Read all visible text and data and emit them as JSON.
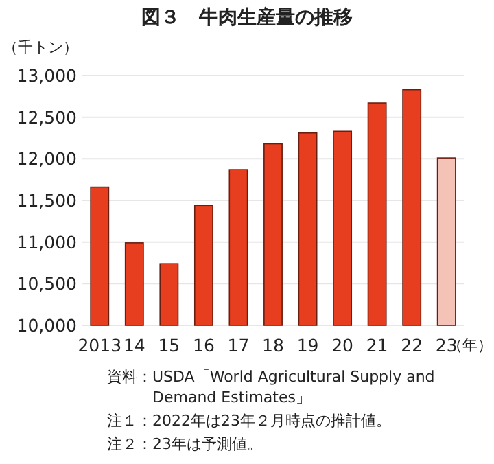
{
  "chart_data": {
    "type": "bar",
    "title": "図３　牛肉生産量の推移",
    "ylabel": "（千トン）",
    "xlabel": "（年）",
    "categories": [
      "2013",
      "14",
      "15",
      "16",
      "17",
      "18",
      "19",
      "20",
      "21",
      "22",
      "23"
    ],
    "values": [
      11660,
      10990,
      10740,
      11440,
      11870,
      12180,
      12310,
      12330,
      12670,
      12830,
      12010
    ],
    "colors": [
      "#e63e1e",
      "#e63e1e",
      "#e63e1e",
      "#e63e1e",
      "#e63e1e",
      "#e63e1e",
      "#e63e1e",
      "#e63e1e",
      "#e63e1e",
      "#e63e1e",
      "#f4c2b6"
    ],
    "ylim": [
      10000,
      13000
    ],
    "yticks": [
      {
        "value": 10000,
        "label": "10,000"
      },
      {
        "value": 10500,
        "label": "10,500"
      },
      {
        "value": 11000,
        "label": "11,000"
      },
      {
        "value": 11500,
        "label": "11,500"
      },
      {
        "value": 12000,
        "label": "12,000"
      },
      {
        "value": 12500,
        "label": "12,500"
      },
      {
        "value": 13000,
        "label": "13,000"
      }
    ],
    "grid": "y",
    "annotations": [
      "資料：USDA「World Agricultural Supply and Demand Estimates」",
      "注１：2022年は23年２月時点の推計値。",
      "注２：23年は予測値。"
    ]
  }
}
